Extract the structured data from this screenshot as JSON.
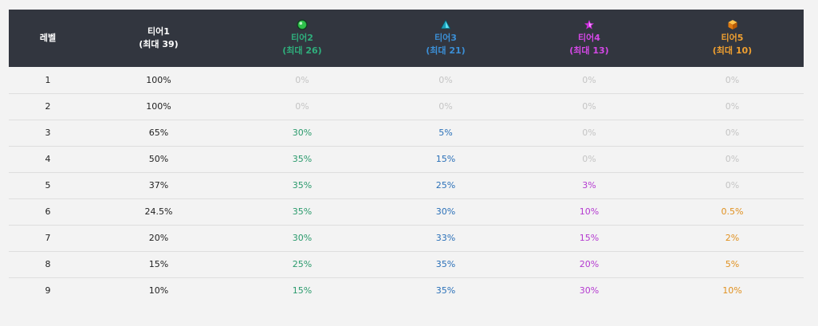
{
  "header": {
    "level_label": "레벨",
    "tiers": [
      {
        "name": "티어1",
        "max": "(최대 39)",
        "color": "#ffffff",
        "icon": null
      },
      {
        "name": "티어2",
        "max": "(최대 26)",
        "color": "#2fae7c",
        "icon": "green-orb-icon"
      },
      {
        "name": "티어3",
        "max": "(최대 21)",
        "color": "#3b8fd6",
        "icon": "cyan-triangle-icon"
      },
      {
        "name": "티어4",
        "max": "(최대 13)",
        "color": "#d448e6",
        "icon": "magenta-star-icon"
      },
      {
        "name": "티어5",
        "max": "(최대 10)",
        "color": "#f0a030",
        "icon": "orange-cube-icon"
      }
    ]
  },
  "rows": [
    {
      "level": "1",
      "t1": "100%",
      "t2": "0%",
      "t3": "0%",
      "t4": "0%",
      "t5": "0%"
    },
    {
      "level": "2",
      "t1": "100%",
      "t2": "0%",
      "t3": "0%",
      "t4": "0%",
      "t5": "0%"
    },
    {
      "level": "3",
      "t1": "65%",
      "t2": "30%",
      "t3": "5%",
      "t4": "0%",
      "t5": "0%"
    },
    {
      "level": "4",
      "t1": "50%",
      "t2": "35%",
      "t3": "15%",
      "t4": "0%",
      "t5": "0%"
    },
    {
      "level": "5",
      "t1": "37%",
      "t2": "35%",
      "t3": "25%",
      "t4": "3%",
      "t5": "0%"
    },
    {
      "level": "6",
      "t1": "24.5%",
      "t2": "35%",
      "t3": "30%",
      "t4": "10%",
      "t5": "0.5%"
    },
    {
      "level": "7",
      "t1": "20%",
      "t2": "30%",
      "t3": "33%",
      "t4": "15%",
      "t5": "2%"
    },
    {
      "level": "8",
      "t1": "15%",
      "t2": "25%",
      "t3": "35%",
      "t4": "20%",
      "t5": "5%"
    },
    {
      "level": "9",
      "t1": "10%",
      "t2": "15%",
      "t3": "35%",
      "t4": "30%",
      "t5": "10%"
    }
  ],
  "colors": {
    "header_bg": "#32363f",
    "page_bg": "#f3f3f3",
    "zero": "#c4c4c4",
    "tier2": "#2a9a6c",
    "tier3": "#2a70b8",
    "tier4": "#b43ad0",
    "tier5": "#e0901e"
  }
}
